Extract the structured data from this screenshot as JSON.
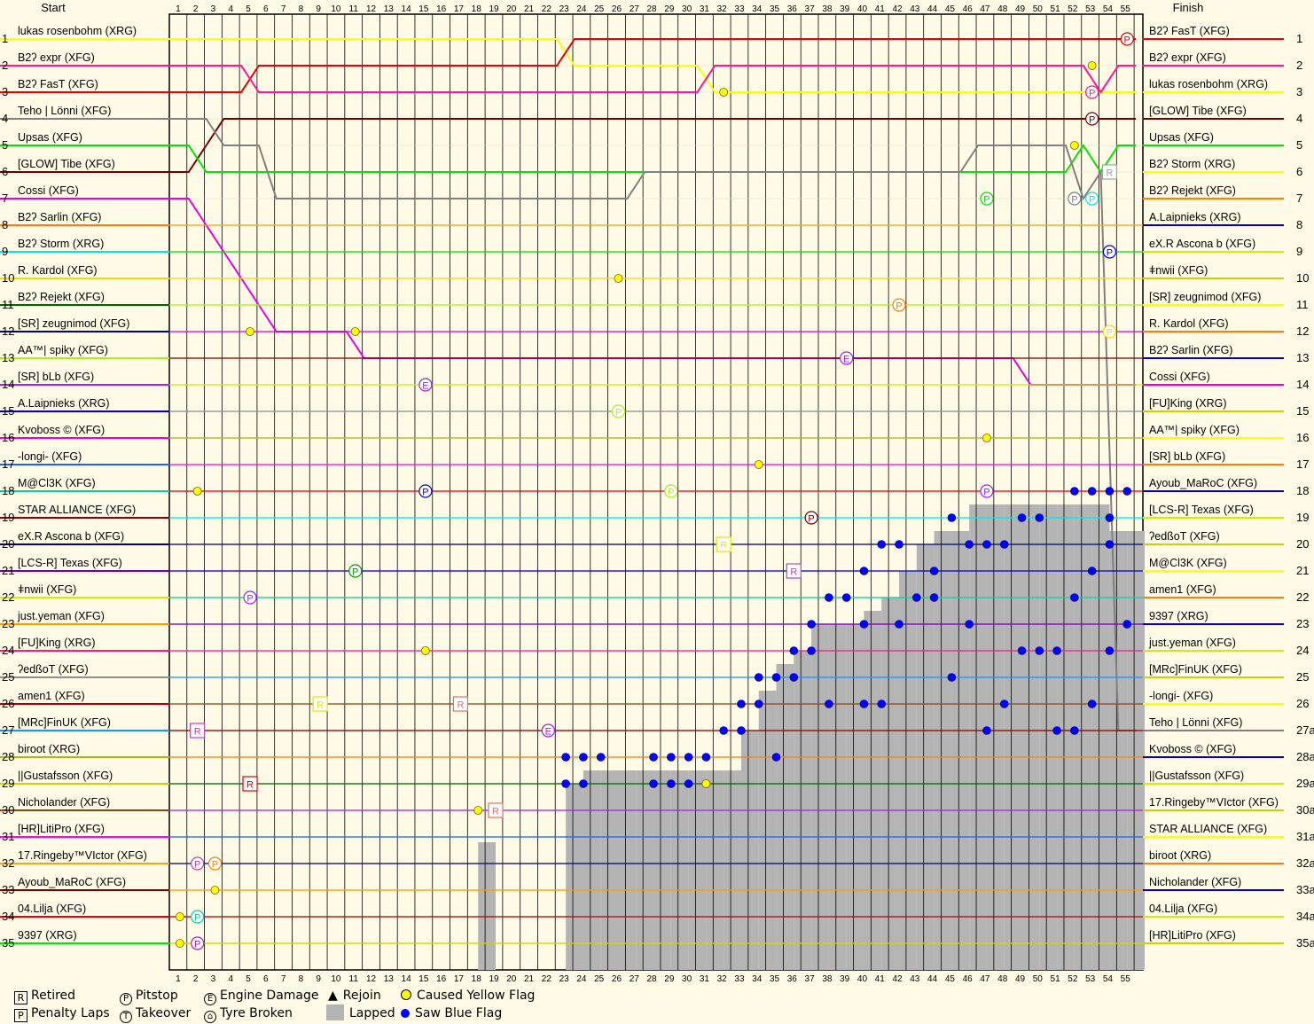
{
  "chart_data": {
    "type": "line",
    "header": {
      "start": "Start",
      "finish": "Finish"
    },
    "laps": [
      1,
      2,
      3,
      4,
      5,
      6,
      7,
      8,
      9,
      10,
      11,
      12,
      13,
      14,
      15,
      16,
      17,
      18,
      19,
      20,
      21,
      22,
      23,
      24,
      25,
      26,
      27,
      28,
      29,
      30,
      31,
      32,
      33,
      34,
      35,
      36,
      37,
      38,
      39,
      40,
      41,
      42,
      43,
      44,
      45,
      46,
      47,
      48,
      49,
      50,
      51,
      52,
      53,
      54,
      55
    ],
    "positions": [
      1,
      2,
      3,
      4,
      5,
      6,
      7,
      8,
      9,
      10,
      11,
      12,
      13,
      14,
      15,
      16,
      17,
      18,
      19,
      20,
      21,
      22,
      23,
      24,
      25,
      26,
      27,
      28,
      29,
      30,
      31,
      32,
      33,
      34,
      35
    ],
    "right_positions": [
      "1",
      "2",
      "3",
      "4",
      "5",
      "6",
      "7",
      "8",
      "9",
      "10",
      "11",
      "12",
      "13",
      "14",
      "15",
      "16",
      "17",
      "18",
      "19",
      "20",
      "21",
      "22",
      "23",
      "24",
      "25",
      "26",
      "27a",
      "28a",
      "29a",
      "30a",
      "31a",
      "32a",
      "33a",
      "34a",
      "35a"
    ],
    "start_order": [
      "lukas rosenbohm (XRG)",
      "B2ʔ expr (XFG)",
      "B2ʔ FasT (XFG)",
      "Teho | Lönni (XFG)",
      "Upsas (XFG)",
      "[GLOW] Tibe (XFG)",
      "Cossi (XFG)",
      "B2ʔ Sarlin (XFG)",
      "B2ʔ Storm (XRG)",
      "R. Kardol (XFG)",
      "B2ʔ Rejekt (XFG)",
      "[SR] zeugnimod (XFG)",
      "AA™| spiky (XFG)",
      "[SR] bLb (XFG)",
      "A.Laipnieks (XRG)",
      "Kvoboss © (XFG)",
      "-longi- (XFG)",
      "M@Cl3K (XFG)",
      "STAR ALLIANCE (XFG)",
      "eX.R Ascona b (XFG)",
      "[LCS-R] Texas (XFG)",
      "ǂnwii (XFG)",
      "just.yeman (XFG)",
      "[FU]King (XRG)",
      "ʔedßoT (XFG)",
      "amen1 (XFG)",
      "[MRc]FinUK (XFG)",
      "biroot (XRG)",
      "||Gustafsson (XFG)",
      "Nicholander (XFG)",
      "[HR]LitiPro (XFG)",
      "17.Ringeby™VIctor (XFG)",
      "Ayoub_MaRoC (XFG)",
      "04.Lilja (XFG)",
      "9397 (XRG)"
    ],
    "finish_order": [
      "B2ʔ FasT (XFG)",
      "B2ʔ expr (XFG)",
      "lukas rosenbohm (XRG)",
      "[GLOW] Tibe (XFG)",
      "Upsas (XFG)",
      "B2ʔ Storm (XRG)",
      "B2ʔ Rejekt (XFG)",
      "A.Laipnieks (XRG)",
      "eX.R Ascona b (XFG)",
      "ǂnwii (XFG)",
      "[SR] zeugnimod (XFG)",
      "R. Kardol (XFG)",
      "B2ʔ Sarlin (XFG)",
      "Cossi (XFG)",
      "[FU]King (XRG)",
      "AA™| spiky (XFG)",
      "[SR] bLb (XFG)",
      "Ayoub_MaRoC (XFG)",
      "[LCS-R] Texas (XFG)",
      "ʔedßoT (XFG)",
      "M@Cl3K (XFG)",
      "amen1 (XFG)",
      "9397 (XRG)",
      "just.yeman (XFG)",
      "[MRc]FinUK (XFG)",
      "-longi- (XFG)",
      "Teho | Lönni (XFG)",
      "Kvoboss © (XFG)",
      "||Gustafsson (XFG)",
      "17.Ringeby™VIctor (XFG)",
      "STAR ALLIANCE (XFG)",
      "biroot (XRG)",
      "Nicholander (XFG)",
      "04.Lilja (XFG)",
      "[HR]LitiPro (XFG)"
    ],
    "series": [
      {
        "name": "lukas rosenbohm (XRG)",
        "color": "#ffff00",
        "pos": [
          1,
          1,
          1,
          1,
          1,
          1,
          1,
          1,
          1,
          1,
          1,
          1,
          1,
          1,
          1,
          1,
          1,
          1,
          1,
          1,
          1,
          1,
          1,
          2,
          2,
          2,
          2,
          2,
          2,
          2,
          2,
          3,
          3,
          3,
          3,
          3,
          3,
          3,
          3,
          3,
          3,
          3,
          3,
          3,
          3,
          3,
          3,
          3,
          3,
          3,
          3,
          3,
          3,
          3,
          3,
          3
        ]
      },
      {
        "name": "B2ʔ FasT (XFG)",
        "color": "#e60000",
        "pos": [
          3,
          3,
          3,
          3,
          3,
          2,
          2,
          2,
          2,
          2,
          2,
          2,
          2,
          2,
          2,
          2,
          2,
          2,
          2,
          2,
          2,
          2,
          2,
          1,
          1,
          1,
          1,
          1,
          1,
          1,
          1,
          1,
          1,
          1,
          1,
          1,
          1,
          1,
          1,
          1,
          1,
          1,
          1,
          1,
          1,
          1,
          1,
          1,
          1,
          1,
          1,
          1,
          1,
          1,
          1,
          1
        ]
      },
      {
        "name": "B2ʔ expr (XFG)",
        "color": "#ff1493",
        "pos": [
          2,
          2,
          2,
          2,
          2,
          3,
          3,
          3,
          3,
          3,
          3,
          3,
          3,
          3,
          3,
          3,
          3,
          3,
          3,
          3,
          3,
          3,
          3,
          3,
          3,
          3,
          3,
          3,
          3,
          3,
          3,
          2,
          2,
          2,
          2,
          2,
          2,
          2,
          2,
          2,
          2,
          2,
          2,
          2,
          2,
          2,
          2,
          2,
          2,
          2,
          2,
          2,
          2,
          3,
          2,
          2
        ]
      },
      {
        "name": "[GLOW] Tibe (XFG)",
        "color": "#6e0000",
        "pos": [
          6,
          6,
          5,
          4,
          4,
          4,
          4,
          4,
          4,
          4,
          4,
          4,
          4,
          4,
          4,
          4,
          4,
          4,
          4,
          4,
          4,
          4,
          4,
          4,
          4,
          4,
          4,
          4,
          4,
          4,
          4,
          4,
          4,
          4,
          4,
          4,
          4,
          4,
          4,
          4,
          4,
          4,
          4,
          4,
          4,
          4,
          4,
          4,
          4,
          4,
          4,
          4,
          4,
          4,
          4,
          4
        ]
      },
      {
        "name": "Upsas (XFG)",
        "color": "#00e600",
        "pos": [
          5,
          5,
          6,
          6,
          6,
          6,
          6,
          6,
          6,
          6,
          6,
          6,
          6,
          6,
          6,
          6,
          6,
          6,
          6,
          6,
          6,
          6,
          6,
          6,
          6,
          6,
          6,
          6,
          6,
          6,
          6,
          6,
          6,
          6,
          6,
          6,
          6,
          6,
          6,
          6,
          6,
          6,
          6,
          6,
          6,
          6,
          6,
          6,
          6,
          6,
          6,
          6,
          5,
          6,
          5,
          5
        ]
      },
      {
        "name": "Teho | Lönni (XFG)",
        "color": "#808080",
        "pos": [
          4,
          4,
          4,
          5,
          5,
          5,
          7,
          7,
          7,
          7,
          7,
          7,
          7,
          7,
          7,
          7,
          7,
          7,
          7,
          7,
          7,
          7,
          7,
          7,
          7,
          7,
          7,
          6,
          6,
          6,
          6,
          6,
          6,
          6,
          6,
          6,
          6,
          6,
          6,
          6,
          6,
          6,
          6,
          6,
          6,
          6,
          5,
          5,
          5,
          5,
          5,
          5,
          7,
          6,
          27,
          27
        ]
      },
      {
        "name": "Cossi (XFG)",
        "color": "#e600e6",
        "pos": [
          7,
          7,
          8,
          9,
          10,
          11,
          12,
          12,
          12,
          12,
          12,
          13,
          13,
          13,
          13,
          13,
          13,
          13,
          13,
          13,
          13,
          13,
          13,
          13,
          13,
          13,
          13,
          13,
          13,
          13,
          13,
          13,
          13,
          13,
          13,
          13,
          13,
          13,
          13,
          13,
          13,
          13,
          13,
          13,
          13,
          13,
          13,
          13,
          13,
          14,
          14,
          14,
          14,
          14,
          14,
          14
        ]
      }
    ],
    "markers": [
      {
        "type": "P",
        "lap": 55,
        "pos": 1,
        "color": "#e60000"
      },
      {
        "type": "P",
        "lap": 53,
        "pos": 3,
        "color": "#ff1493"
      },
      {
        "type": "P",
        "lap": 53,
        "pos": 4,
        "color": "#6e0000"
      },
      {
        "type": "R",
        "lap": 54,
        "pos": 6,
        "color": "#a0a0a0"
      },
      {
        "type": "P",
        "lap": 47,
        "pos": 7,
        "color": "#00e600"
      },
      {
        "type": "P",
        "lap": 52,
        "pos": 7,
        "color": "#808080"
      },
      {
        "type": "P",
        "lap": 53,
        "pos": 7,
        "color": "#00e6e6"
      },
      {
        "type": "P",
        "lap": 54,
        "pos": 9,
        "color": "#0000c8"
      },
      {
        "type": "P",
        "lap": 42,
        "pos": 11,
        "color": "#ff7f00"
      },
      {
        "type": "P",
        "lap": 54,
        "pos": 12,
        "color": "#ffd700"
      },
      {
        "type": "E",
        "lap": 39,
        "pos": 13,
        "color": "#a020f0"
      },
      {
        "type": "E",
        "lap": 15,
        "pos": 14,
        "color": "#a020f0"
      },
      {
        "type": "P",
        "lap": 26,
        "pos": 15,
        "color": "#aaee22"
      },
      {
        "type": "P",
        "lap": 15,
        "pos": 18,
        "color": "#0000c8"
      },
      {
        "type": "P",
        "lap": 29,
        "pos": 18,
        "color": "#aaee22"
      },
      {
        "type": "P",
        "lap": 47,
        "pos": 18,
        "color": "#a020f0"
      },
      {
        "type": "P",
        "lap": 37,
        "pos": 19,
        "color": "#6e0000"
      },
      {
        "type": "R",
        "lap": 32,
        "pos": 20,
        "color": "#e6e600"
      },
      {
        "type": "P",
        "lap": 11,
        "pos": 21,
        "color": "#00a000"
      },
      {
        "type": "R",
        "lap": 36,
        "pos": 21,
        "color": "#c040c0"
      },
      {
        "type": "P",
        "lap": 5,
        "pos": 22,
        "color": "#a020f0"
      },
      {
        "type": "R",
        "lap": 9,
        "pos": 26,
        "color": "#e6e600"
      },
      {
        "type": "R",
        "lap": 17,
        "pos": 26,
        "color": "#e07070"
      },
      {
        "type": "R",
        "lap": 2,
        "pos": 27,
        "color": "#c040c0"
      },
      {
        "type": "E",
        "lap": 22,
        "pos": 27,
        "color": "#a020f0"
      },
      {
        "type": "R",
        "lap": 5,
        "pos": 29,
        "color": "#e60000"
      },
      {
        "type": "R",
        "lap": 19,
        "pos": 30,
        "color": "#e07070"
      },
      {
        "type": "P",
        "lap": 2,
        "pos": 32,
        "color": "#c040c0"
      },
      {
        "type": "P",
        "lap": 3,
        "pos": 32,
        "color": "#ff7f00"
      },
      {
        "type": "P",
        "lap": 2,
        "pos": 34,
        "color": "#00d0a0"
      },
      {
        "type": "P",
        "lap": 2,
        "pos": 35,
        "color": "#a020f0"
      }
    ],
    "yellow_flags": [
      {
        "lap": 1,
        "pos": 34
      },
      {
        "lap": 1,
        "pos": 35
      },
      {
        "lap": 2,
        "pos": 18
      },
      {
        "lap": 3,
        "pos": 33
      },
      {
        "lap": 5,
        "pos": 12
      },
      {
        "lap": 11,
        "pos": 12
      },
      {
        "lap": 15,
        "pos": 24
      },
      {
        "lap": 18,
        "pos": 30
      },
      {
        "lap": 26,
        "pos": 10
      },
      {
        "lap": 31,
        "pos": 29
      },
      {
        "lap": 32,
        "pos": 3
      },
      {
        "lap": 34,
        "pos": 17
      },
      {
        "lap": 47,
        "pos": 16
      },
      {
        "lap": 52,
        "pos": 5
      },
      {
        "lap": 53,
        "pos": 2
      }
    ],
    "lapped_heights": [
      0,
      0,
      0,
      0,
      0,
      0,
      0,
      0,
      0,
      0,
      0,
      0,
      0,
      0,
      0,
      0,
      0,
      0,
      4.8,
      0,
      0,
      0,
      0,
      7,
      7.5,
      7.5,
      7.5,
      7.5,
      7.5,
      7.5,
      7.5,
      7.5,
      7.5,
      9,
      10.5,
      11.5,
      12,
      13,
      13,
      13,
      13.5,
      14,
      15,
      16,
      16.5,
      16.5,
      17.5,
      17.5,
      17.5,
      17.5,
      17.5,
      17.5,
      17.5,
      17.5,
      16.5,
      16.5,
      0
    ],
    "blue_flags": [
      {
        "lap": 23,
        "pos": 28
      },
      {
        "lap": 23,
        "pos": 29
      },
      {
        "lap": 24,
        "pos": 28
      },
      {
        "lap": 24,
        "pos": 29
      },
      {
        "lap": 25,
        "pos": 28
      },
      {
        "lap": 28,
        "pos": 28
      },
      {
        "lap": 28,
        "pos": 29
      },
      {
        "lap": 29,
        "pos": 28
      },
      {
        "lap": 29,
        "pos": 29
      },
      {
        "lap": 30,
        "pos": 28
      },
      {
        "lap": 30,
        "pos": 29
      },
      {
        "lap": 31,
        "pos": 28
      },
      {
        "lap": 31,
        "pos": 29
      },
      {
        "lap": 32,
        "pos": 27
      },
      {
        "lap": 33,
        "pos": 27
      },
      {
        "lap": 33,
        "pos": 26
      },
      {
        "lap": 34,
        "pos": 26
      },
      {
        "lap": 34,
        "pos": 25
      },
      {
        "lap": 35,
        "pos": 25
      },
      {
        "lap": 35,
        "pos": 28
      },
      {
        "lap": 36,
        "pos": 24
      },
      {
        "lap": 36,
        "pos": 25
      },
      {
        "lap": 37,
        "pos": 23
      },
      {
        "lap": 37,
        "pos": 24
      },
      {
        "lap": 38,
        "pos": 22
      },
      {
        "lap": 38,
        "pos": 26
      },
      {
        "lap": 39,
        "pos": 22
      },
      {
        "lap": 40,
        "pos": 21
      },
      {
        "lap": 40,
        "pos": 23
      },
      {
        "lap": 40,
        "pos": 26
      },
      {
        "lap": 41,
        "pos": 20
      },
      {
        "lap": 41,
        "pos": 26
      },
      {
        "lap": 42,
        "pos": 20
      },
      {
        "lap": 42,
        "pos": 23
      },
      {
        "lap": 43,
        "pos": 22
      },
      {
        "lap": 44,
        "pos": 21
      },
      {
        "lap": 44,
        "pos": 22
      },
      {
        "lap": 45,
        "pos": 19
      },
      {
        "lap": 45,
        "pos": 25
      },
      {
        "lap": 46,
        "pos": 20
      },
      {
        "lap": 46,
        "pos": 23
      },
      {
        "lap": 47,
        "pos": 20
      },
      {
        "lap": 47,
        "pos": 27
      },
      {
        "lap": 48,
        "pos": 20
      },
      {
        "lap": 48,
        "pos": 26
      },
      {
        "lap": 49,
        "pos": 19
      },
      {
        "lap": 49,
        "pos": 24
      },
      {
        "lap": 50,
        "pos": 19
      },
      {
        "lap": 50,
        "pos": 24
      },
      {
        "lap": 51,
        "pos": 24
      },
      {
        "lap": 51,
        "pos": 27
      },
      {
        "lap": 52,
        "pos": 18
      },
      {
        "lap": 52,
        "pos": 22
      },
      {
        "lap": 52,
        "pos": 27
      },
      {
        "lap": 53,
        "pos": 18
      },
      {
        "lap": 53,
        "pos": 21
      },
      {
        "lap": 53,
        "pos": 26
      },
      {
        "lap": 54,
        "pos": 18
      },
      {
        "lap": 54,
        "pos": 19
      },
      {
        "lap": 54,
        "pos": 20
      },
      {
        "lap": 54,
        "pos": 24
      },
      {
        "lap": 55,
        "pos": 18
      },
      {
        "lap": 55,
        "pos": 23
      }
    ]
  },
  "legend": {
    "retired": {
      "symbol": "R",
      "label": "Retired"
    },
    "penalty": {
      "symbol": "P",
      "label": "Penalty Laps"
    },
    "pitstop": {
      "symbol": "P",
      "label": "Pitstop"
    },
    "takeover": {
      "symbol": "T",
      "label": "Takeover"
    },
    "engine": {
      "symbol": "E",
      "label": "Engine Damage"
    },
    "tyre": {
      "symbol": "⌂",
      "label": "Tyre Broken"
    },
    "rejoin": {
      "symbol": "▲",
      "label": "Rejoin"
    },
    "lapped": {
      "label": "Lapped"
    },
    "yellow": {
      "label": "Caused Yellow Flag",
      "color": "#ffff00"
    },
    "blue": {
      "label": "Saw Blue Flag",
      "color": "#0000ff"
    }
  }
}
